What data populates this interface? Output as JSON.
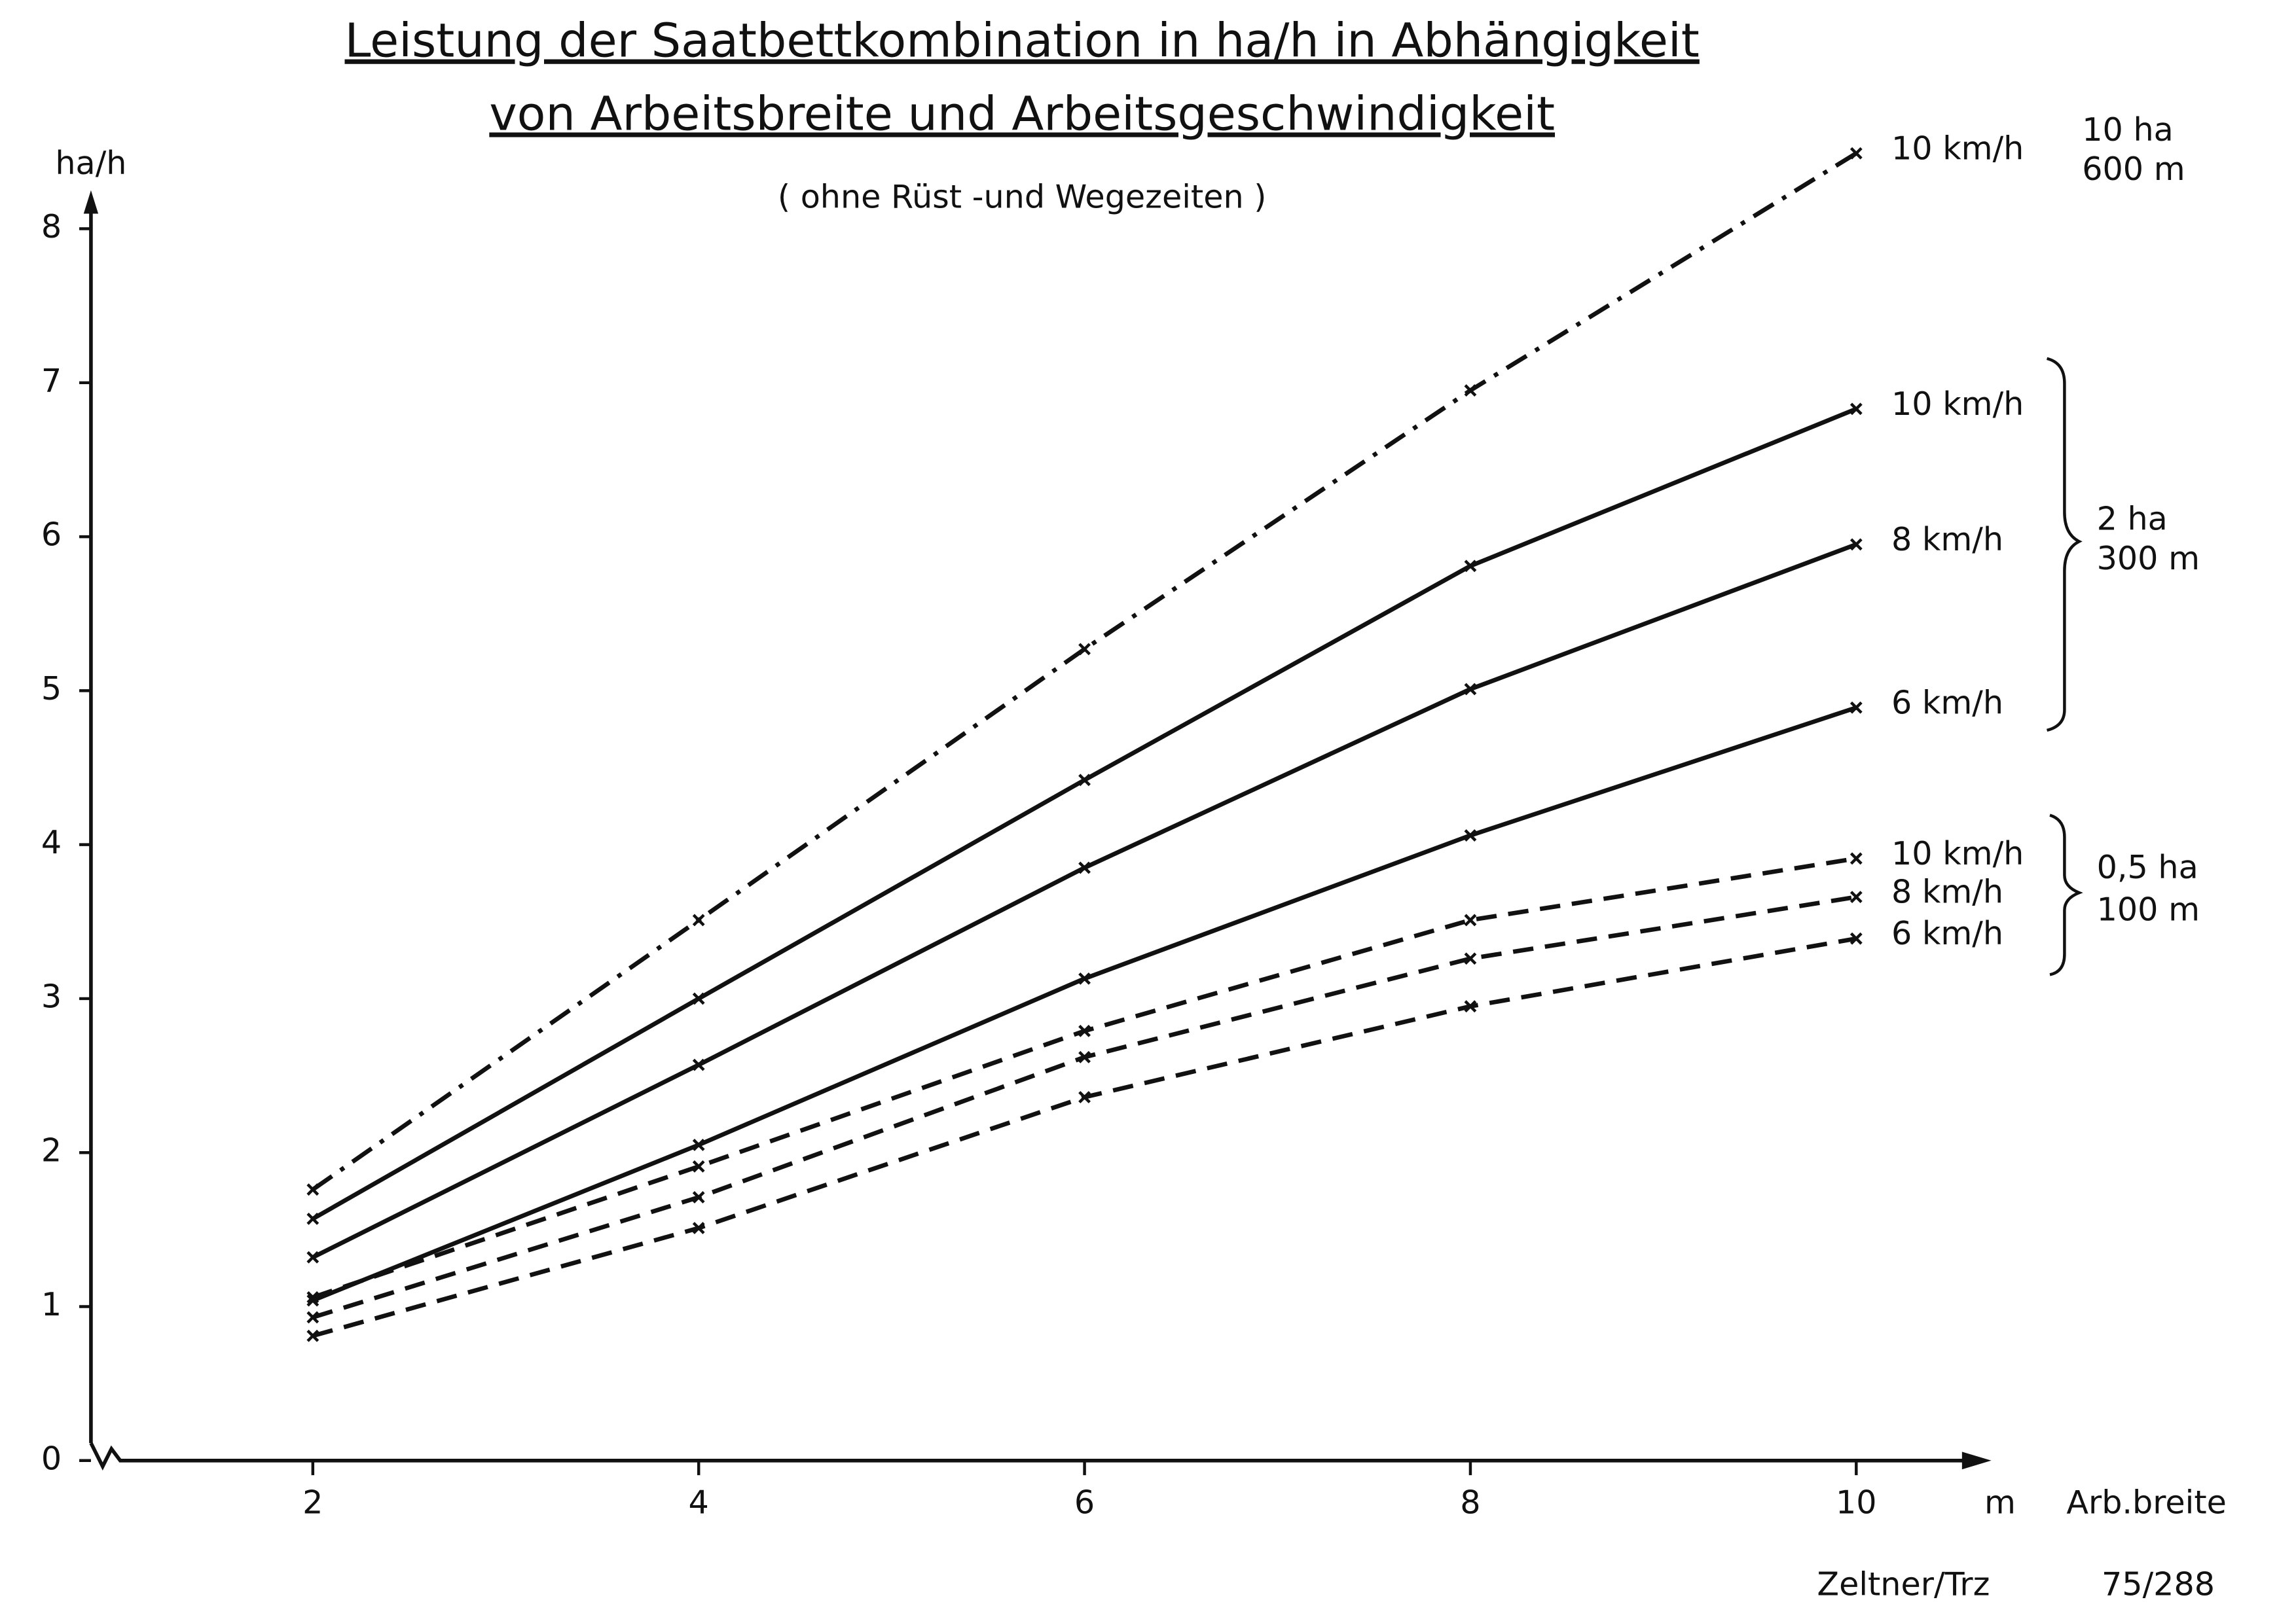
{
  "chart_data": {
    "type": "line",
    "title": [
      "Leistung der Saatbettkombination in ha/h in Abhängigkeit",
      "von Arbeitsbreite und Arbeitsgeschwindigkeit"
    ],
    "subtitle": "( ohne Rüst -und Wegezeiten )",
    "y_label": "ha/h",
    "x_unit": "m",
    "x_label": "Arb.breite",
    "author": "Zeltner/Trz",
    "reference": "75/288",
    "groups": [
      [
        "10  ha",
        "600 m"
      ],
      [
        "2  ha",
        "300 m"
      ],
      [
        "0,5 ha",
        "100 m"
      ]
    ],
    "x": [
      2,
      4,
      6,
      8,
      10
    ],
    "xlim": [
      0.85,
      10.7
    ],
    "xticks": [
      2,
      4,
      6,
      8,
      10
    ],
    "ylim": [
      0,
      8.25
    ],
    "yticks": [
      0,
      1,
      2,
      3,
      4,
      5,
      6,
      7,
      8
    ],
    "series": [
      {
        "name": "10 km/h",
        "color": "#111111",
        "dash": "dashdot",
        "values": [
          1.76,
          3.51,
          5.27,
          6.95,
          8.49
        ]
      },
      {
        "name": "10 km/h",
        "color": "#111111",
        "dash": "solid",
        "values": [
          1.57,
          3.0,
          4.42,
          5.81,
          6.83
        ]
      },
      {
        "name": "8 km/h",
        "color": "#111111",
        "dash": "solid",
        "values": [
          1.32,
          2.57,
          3.85,
          5.01,
          5.95
        ]
      },
      {
        "name": "6 km/h",
        "color": "#111111",
        "dash": "solid",
        "values": [
          1.04,
          2.05,
          3.13,
          4.06,
          4.89
        ]
      },
      {
        "name": "10 km/h",
        "color": "#111111",
        "dash": "dashed",
        "values": [
          1.06,
          1.91,
          2.79,
          3.51,
          3.91
        ]
      },
      {
        "name": "8  km/h",
        "color": "#111111",
        "dash": "dashed",
        "values": [
          0.93,
          1.71,
          2.62,
          3.26,
          3.66
        ]
      },
      {
        "name": "6  km/h",
        "color": "#111111",
        "dash": "dashed",
        "values": [
          0.81,
          1.51,
          2.36,
          2.95,
          3.39
        ]
      }
    ]
  }
}
